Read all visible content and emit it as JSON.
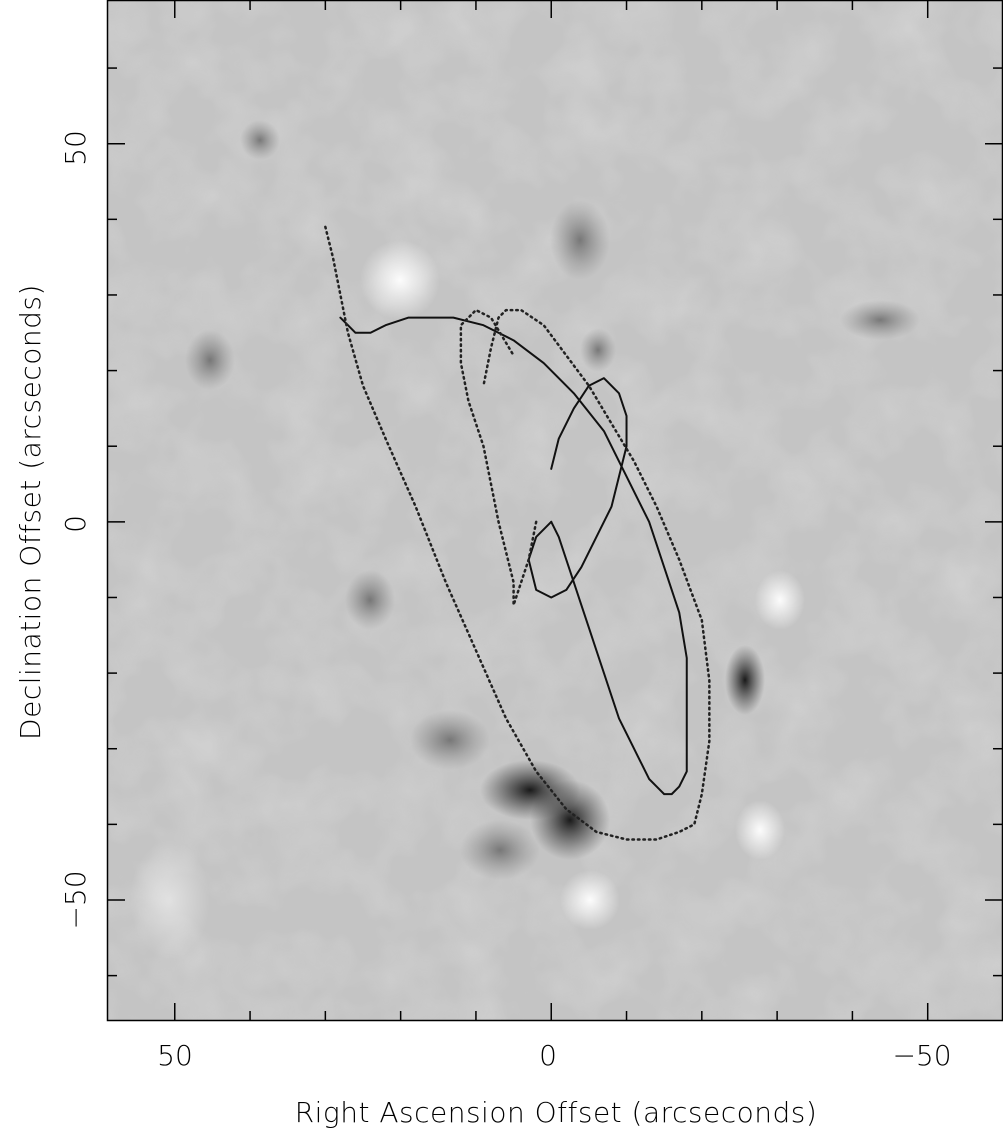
{
  "chart_data": {
    "type": "scatter",
    "xlabel": "Right Ascension Offset (arcseconds)",
    "ylabel": "Declination Offset (arcseconds)",
    "xlim": [
      59,
      -60
    ],
    "ylim": [
      -66,
      69
    ],
    "x_ticks": [
      50,
      0,
      -50
    ],
    "x_tick_labels": [
      "50",
      "0",
      "−50"
    ],
    "y_ticks": [
      50,
      0,
      -50
    ],
    "y_tick_labels": [
      "50",
      "0",
      "−50"
    ],
    "background": "greyscale intensity image",
    "series": [
      {
        "style": "solid",
        "x": [
          0,
          -1,
          -2,
          -3,
          -4,
          -5,
          -6,
          -7,
          -8,
          -9,
          -10,
          -11,
          -12,
          -13,
          -14,
          -15,
          -16,
          -17,
          -18,
          -18,
          -18,
          -18,
          -17,
          -15,
          -13,
          -10,
          -7,
          -3,
          1,
          5,
          9,
          13,
          16,
          19,
          22,
          24,
          26,
          27,
          28
        ],
        "y": [
          0,
          -2,
          -5,
          -8,
          -11,
          -14,
          -17,
          -20,
          -23,
          -26,
          -28,
          -30,
          -32,
          -34,
          -35,
          -36,
          -36,
          -35,
          -33,
          -29,
          -24,
          -18,
          -12,
          -6,
          0,
          6,
          12,
          17,
          21,
          24,
          26,
          27,
          27,
          27,
          26,
          25,
          25,
          26,
          27
        ]
      },
      {
        "style": "solid",
        "x": [
          0,
          2,
          3,
          2,
          0,
          -2,
          -4,
          -6,
          -8,
          -9,
          -10,
          -10,
          -9,
          -7,
          -5,
          -3,
          -1,
          0
        ],
        "y": [
          0,
          -2,
          -5,
          -9,
          -10,
          -9,
          -6,
          -2,
          2,
          6,
          10,
          14,
          17,
          19,
          18,
          15,
          11,
          7
        ]
      },
      {
        "style": "dotted",
        "x": [
          30,
          29,
          28,
          27,
          25,
          22,
          18,
          14,
          10,
          6,
          2,
          -2,
          -6,
          -10,
          -14,
          -17,
          -19,
          -20,
          -21,
          -21,
          -20,
          -17,
          -14,
          -11,
          -8,
          -5,
          -2,
          1,
          4,
          6,
          7,
          8,
          9
        ],
        "y": [
          39,
          35,
          30,
          25,
          18,
          11,
          2,
          -8,
          -17,
          -26,
          -33,
          -38,
          -41,
          -42,
          -42,
          -41,
          -40,
          -36,
          -29,
          -21,
          -13,
          -5,
          2,
          8,
          13,
          18,
          22,
          26,
          28,
          28,
          27,
          23,
          18
        ]
      },
      {
        "style": "dotted",
        "x": [
          2,
          3,
          4,
          5,
          5,
          6,
          7,
          8,
          9,
          11,
          12,
          12,
          10,
          8,
          5
        ],
        "y": [
          0,
          -5,
          -8,
          -11,
          -8,
          -4,
          0,
          5,
          10,
          16,
          21,
          26,
          28,
          27,
          22
        ]
      }
    ]
  }
}
